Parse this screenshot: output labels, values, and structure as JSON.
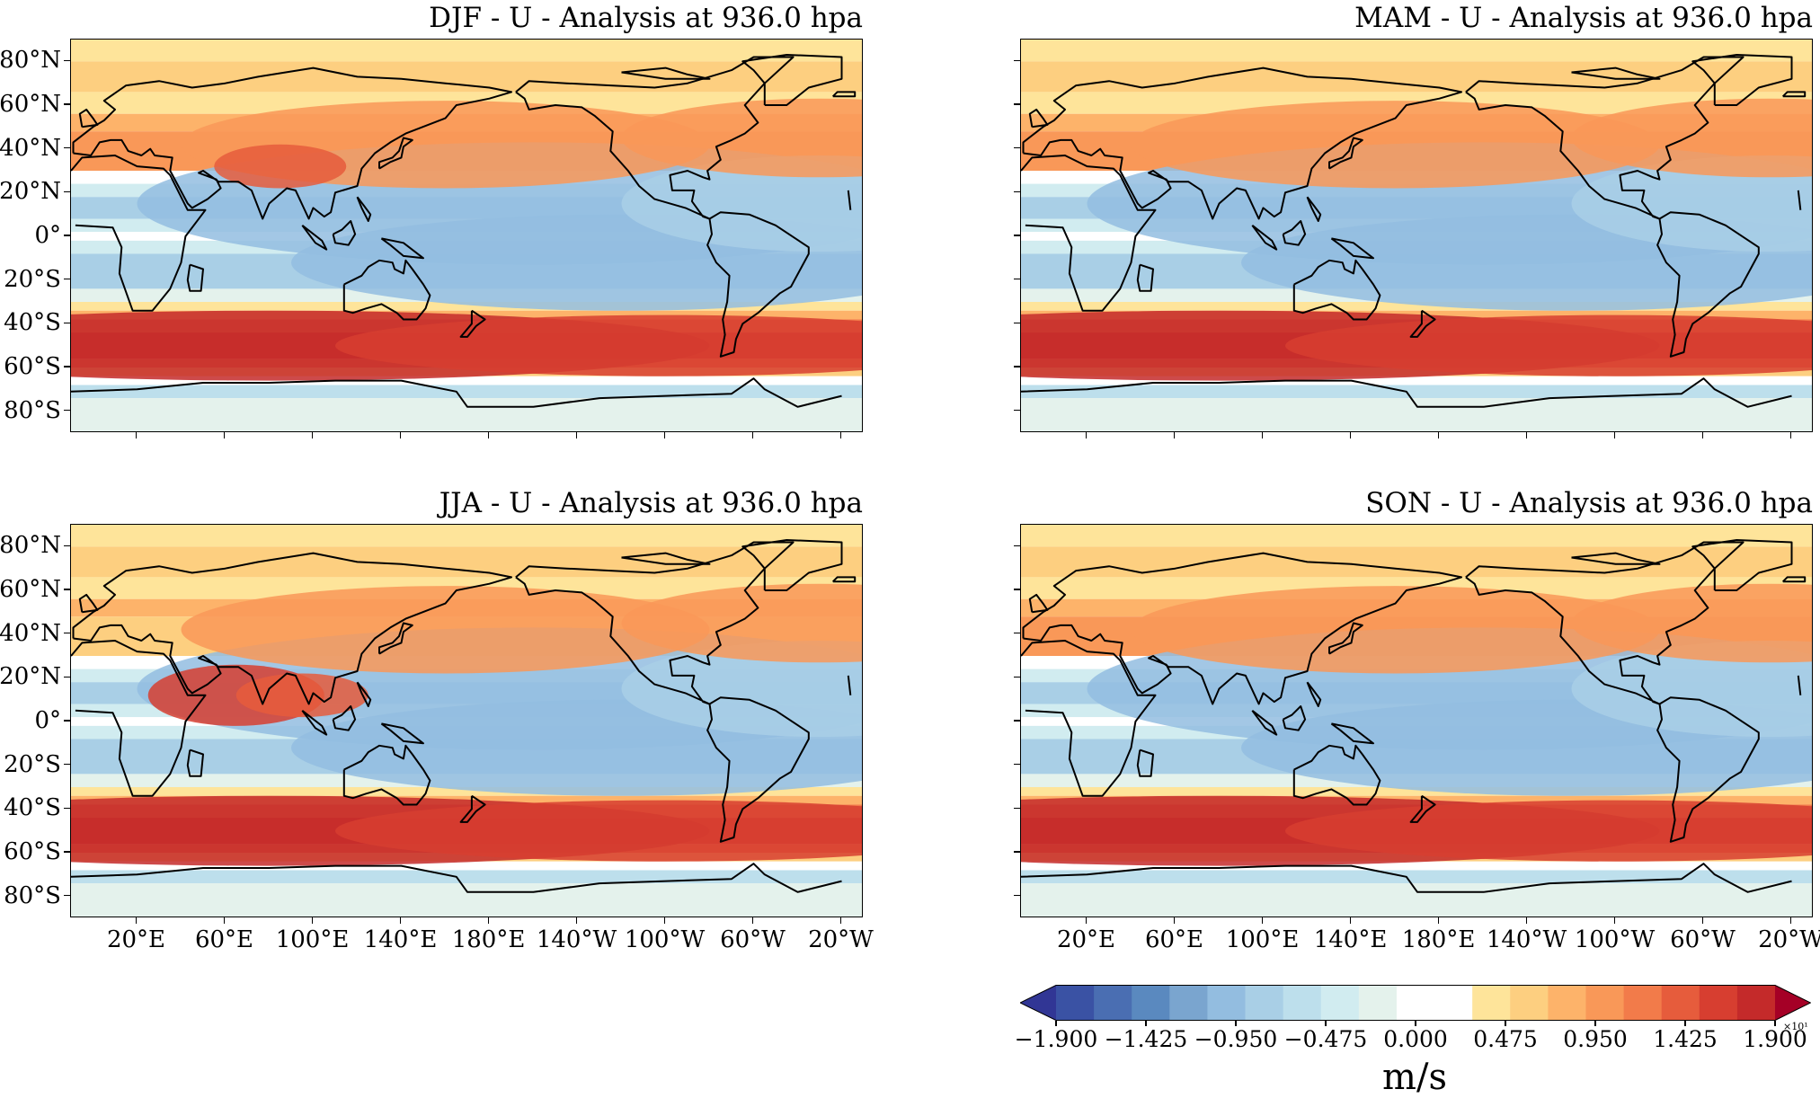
{
  "panels": [
    {
      "title": "DJF - U - Analysis at 936.0 hpa",
      "season": "DJF"
    },
    {
      "title": "MAM - U - Analysis at 936.0 hpa",
      "season": "MAM"
    },
    {
      "title": "JJA - U - Analysis at 936.0 hpa",
      "season": "JJA"
    },
    {
      "title": "SON - U - Analysis at 936.0 hpa",
      "season": "SON"
    }
  ],
  "lat_ticks": [
    "80°N",
    "60°N",
    "40°N",
    "20°N",
    "0°",
    "20°S",
    "40°S",
    "60°S",
    "80°S"
  ],
  "lon_ticks": [
    "20°E",
    "60°E",
    "100°E",
    "140°E",
    "180°E",
    "140°W",
    "100°W",
    "60°W",
    "20°W"
  ],
  "colorbar": {
    "tick_labels": [
      "−1.900",
      "−1.425",
      "−0.950",
      "−0.475",
      "0.000",
      "0.475",
      "0.950",
      "1.425",
      "1.900"
    ],
    "exponent": "×10¹",
    "unit": "m/s",
    "colors": [
      "#313695",
      "#3a52a4",
      "#4a6eb2",
      "#5a89bf",
      "#7aa5cf",
      "#93bde0",
      "#a9cfe6",
      "#bddfec",
      "#d1ecf0",
      "#e4f2ec",
      "#ffffff",
      "#ffffff",
      "#fee49a",
      "#fdcf80",
      "#fdb36a",
      "#f99858",
      "#f27b4a",
      "#e65c3c",
      "#d73e30",
      "#c42a2a",
      "#a50026"
    ]
  },
  "colors": {
    "westerly_strong": "#d73e30",
    "westerly_mid": "#f99858",
    "westerly_weak": "#fee49a",
    "easterly_weak": "#d1ecf0",
    "easterly_mid": "#a9cfe6",
    "easterly_strong": "#6f9ccb"
  }
}
